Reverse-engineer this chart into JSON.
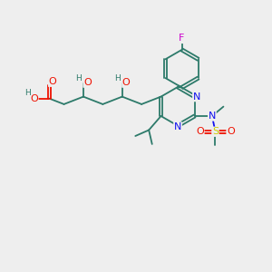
{
  "bg_color": "#eeeeee",
  "atom_colors": {
    "C": "#2d7a6a",
    "H": "#2d7a6a",
    "O": "#ee1100",
    "N": "#1111ee",
    "S": "#cccc00",
    "F": "#cc00cc"
  },
  "figsize": [
    3.0,
    3.0
  ],
  "dpi": 100,
  "lw": 1.3,
  "fs": 8.0,
  "fs_small": 6.5
}
